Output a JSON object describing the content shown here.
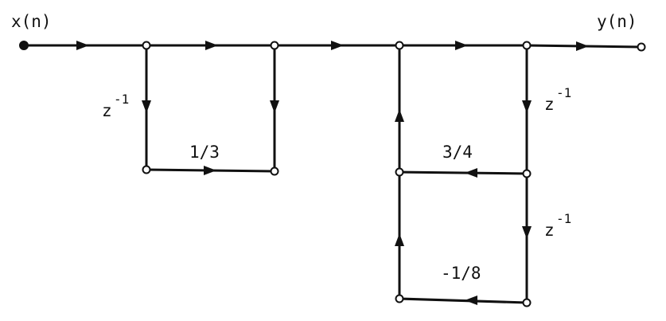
{
  "labels": {
    "input": "x(n)",
    "output": "y(n)",
    "coef_first_section": "1/3",
    "coef_second_section_a": "3/4",
    "coef_second_section_b": "-1/8",
    "delay_base": "z",
    "delay_exponent": "-1"
  },
  "colors": {
    "line": "#111111",
    "background": "#ffffff"
  }
}
